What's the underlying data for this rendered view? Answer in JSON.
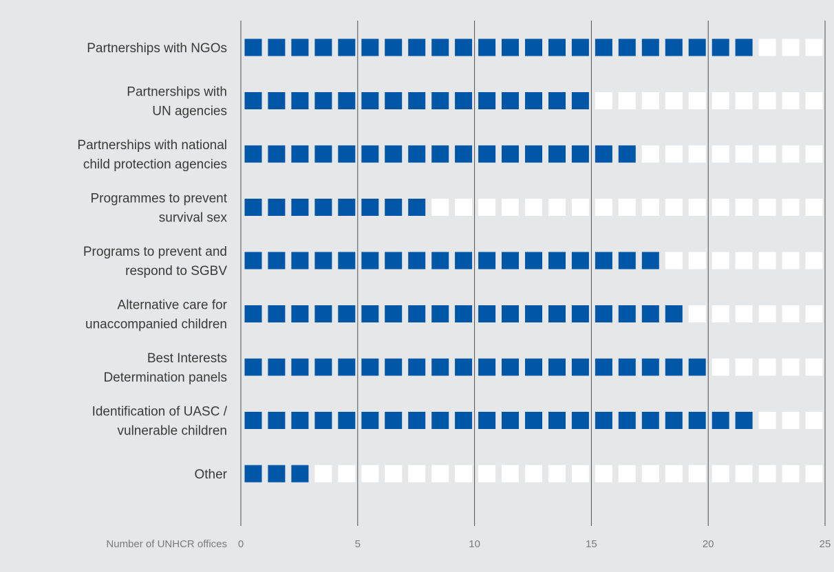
{
  "chart_data": {
    "type": "bar",
    "style": "unit-squares",
    "categories": [
      "Partnerships with NGOs",
      "Partnerships with\nUN agencies",
      "Partnerships with national\nchild protection agencies",
      "Programmes to prevent\nsurvival sex",
      "Programs to prevent and\nrespond to SGBV",
      "Alternative care for\nunaccompanied children",
      "Best Interests\nDetermination panels",
      "Identification of UASC /\nvulnerable children",
      "Other"
    ],
    "values": [
      22,
      15,
      17,
      8,
      18,
      19,
      20,
      22,
      3
    ],
    "xlabel": "Number of UNHCR offices",
    "xlim": [
      0,
      25
    ],
    "xticks": [
      0,
      5,
      10,
      15,
      20,
      25
    ],
    "grid": true,
    "colors": {
      "background": "#e6e7e8",
      "filled": "#0056a7",
      "empty": "#ffffff",
      "gridline": "#4d4d4d",
      "label": "#3a3a3a",
      "axis_text": "#7a7a7a"
    }
  }
}
